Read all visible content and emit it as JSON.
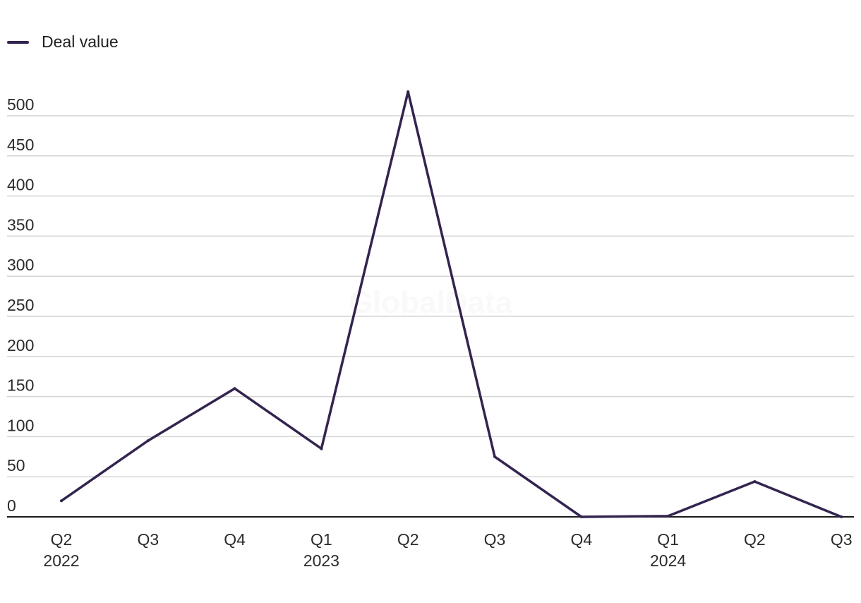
{
  "legend": {
    "label": "Deal value"
  },
  "watermark": "GlobalData",
  "colors": {
    "line": "#33244f",
    "grid": "#d4d4d4",
    "axis": "#1a1a1a"
  },
  "chart_data": {
    "type": "line",
    "categories": [
      [
        "Q2",
        "2022"
      ],
      [
        "Q3",
        ""
      ],
      [
        "Q4",
        ""
      ],
      [
        "Q1",
        "2023"
      ],
      [
        "Q2",
        ""
      ],
      [
        "Q3",
        ""
      ],
      [
        "Q4",
        ""
      ],
      [
        "Q1",
        "2024"
      ],
      [
        "Q2",
        ""
      ],
      [
        "Q3",
        ""
      ]
    ],
    "series": [
      {
        "name": "Deal value",
        "values": [
          20,
          95,
          160,
          85,
          530,
          75,
          0,
          1,
          44,
          0
        ]
      }
    ],
    "yticks": [
      0,
      50,
      100,
      150,
      200,
      250,
      300,
      350,
      400,
      450,
      500
    ],
    "ylim": [
      0,
      500
    ],
    "grid": true,
    "legend_position": "top-left"
  }
}
